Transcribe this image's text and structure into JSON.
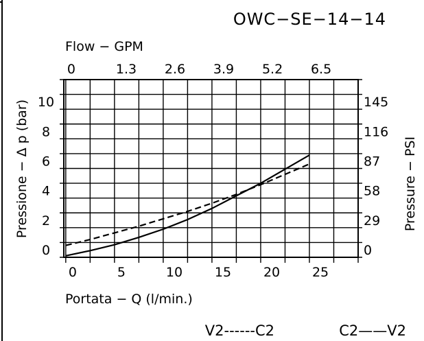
{
  "chart_data": {
    "type": "line",
    "title": "OWC−SE−14−14",
    "xlabel": "Portata − Q (l/min.)",
    "ylabel": "Pressione − Δ p (bar)",
    "x2label": "Flow − GPM",
    "y2label": "Pressure − PSI",
    "xlim": [
      -0.2,
      30
    ],
    "ylim": [
      0,
      12
    ],
    "x_ticks": [
      "0",
      "5",
      "10",
      "15",
      "20",
      "25"
    ],
    "y_ticks": [
      "0",
      "2",
      "4",
      "6",
      "8",
      "10"
    ],
    "x2_ticks": [
      "0",
      "1.3",
      "2.6",
      "3.9",
      "5.2",
      "6.5"
    ],
    "y2_ticks": [
      "0",
      "29",
      "58",
      "87",
      "116",
      "145"
    ],
    "grid": true,
    "series": [
      {
        "name": "C2——V2",
        "style": "solid",
        "color": "#000000",
        "x": [
          0,
          2.5,
          5,
          7.5,
          10,
          12.5,
          15,
          17.5,
          20,
          22.5,
          25
        ],
        "y": [
          0.1,
          0.45,
          0.85,
          1.35,
          1.9,
          2.55,
          3.3,
          4.15,
          5.0,
          5.95,
          6.9
        ]
      },
      {
        "name": "V2------C2",
        "style": "dashed",
        "color": "#000000",
        "x": [
          0,
          2.5,
          5,
          7.5,
          10,
          12.5,
          15,
          17.5,
          20,
          22.5,
          25
        ],
        "y": [
          0.8,
          1.2,
          1.65,
          2.1,
          2.6,
          3.1,
          3.65,
          4.25,
          4.9,
          5.6,
          6.3
        ]
      }
    ],
    "legend": [
      "V2------C2",
      "C2——V2"
    ],
    "legend_position": "bottom-right"
  }
}
